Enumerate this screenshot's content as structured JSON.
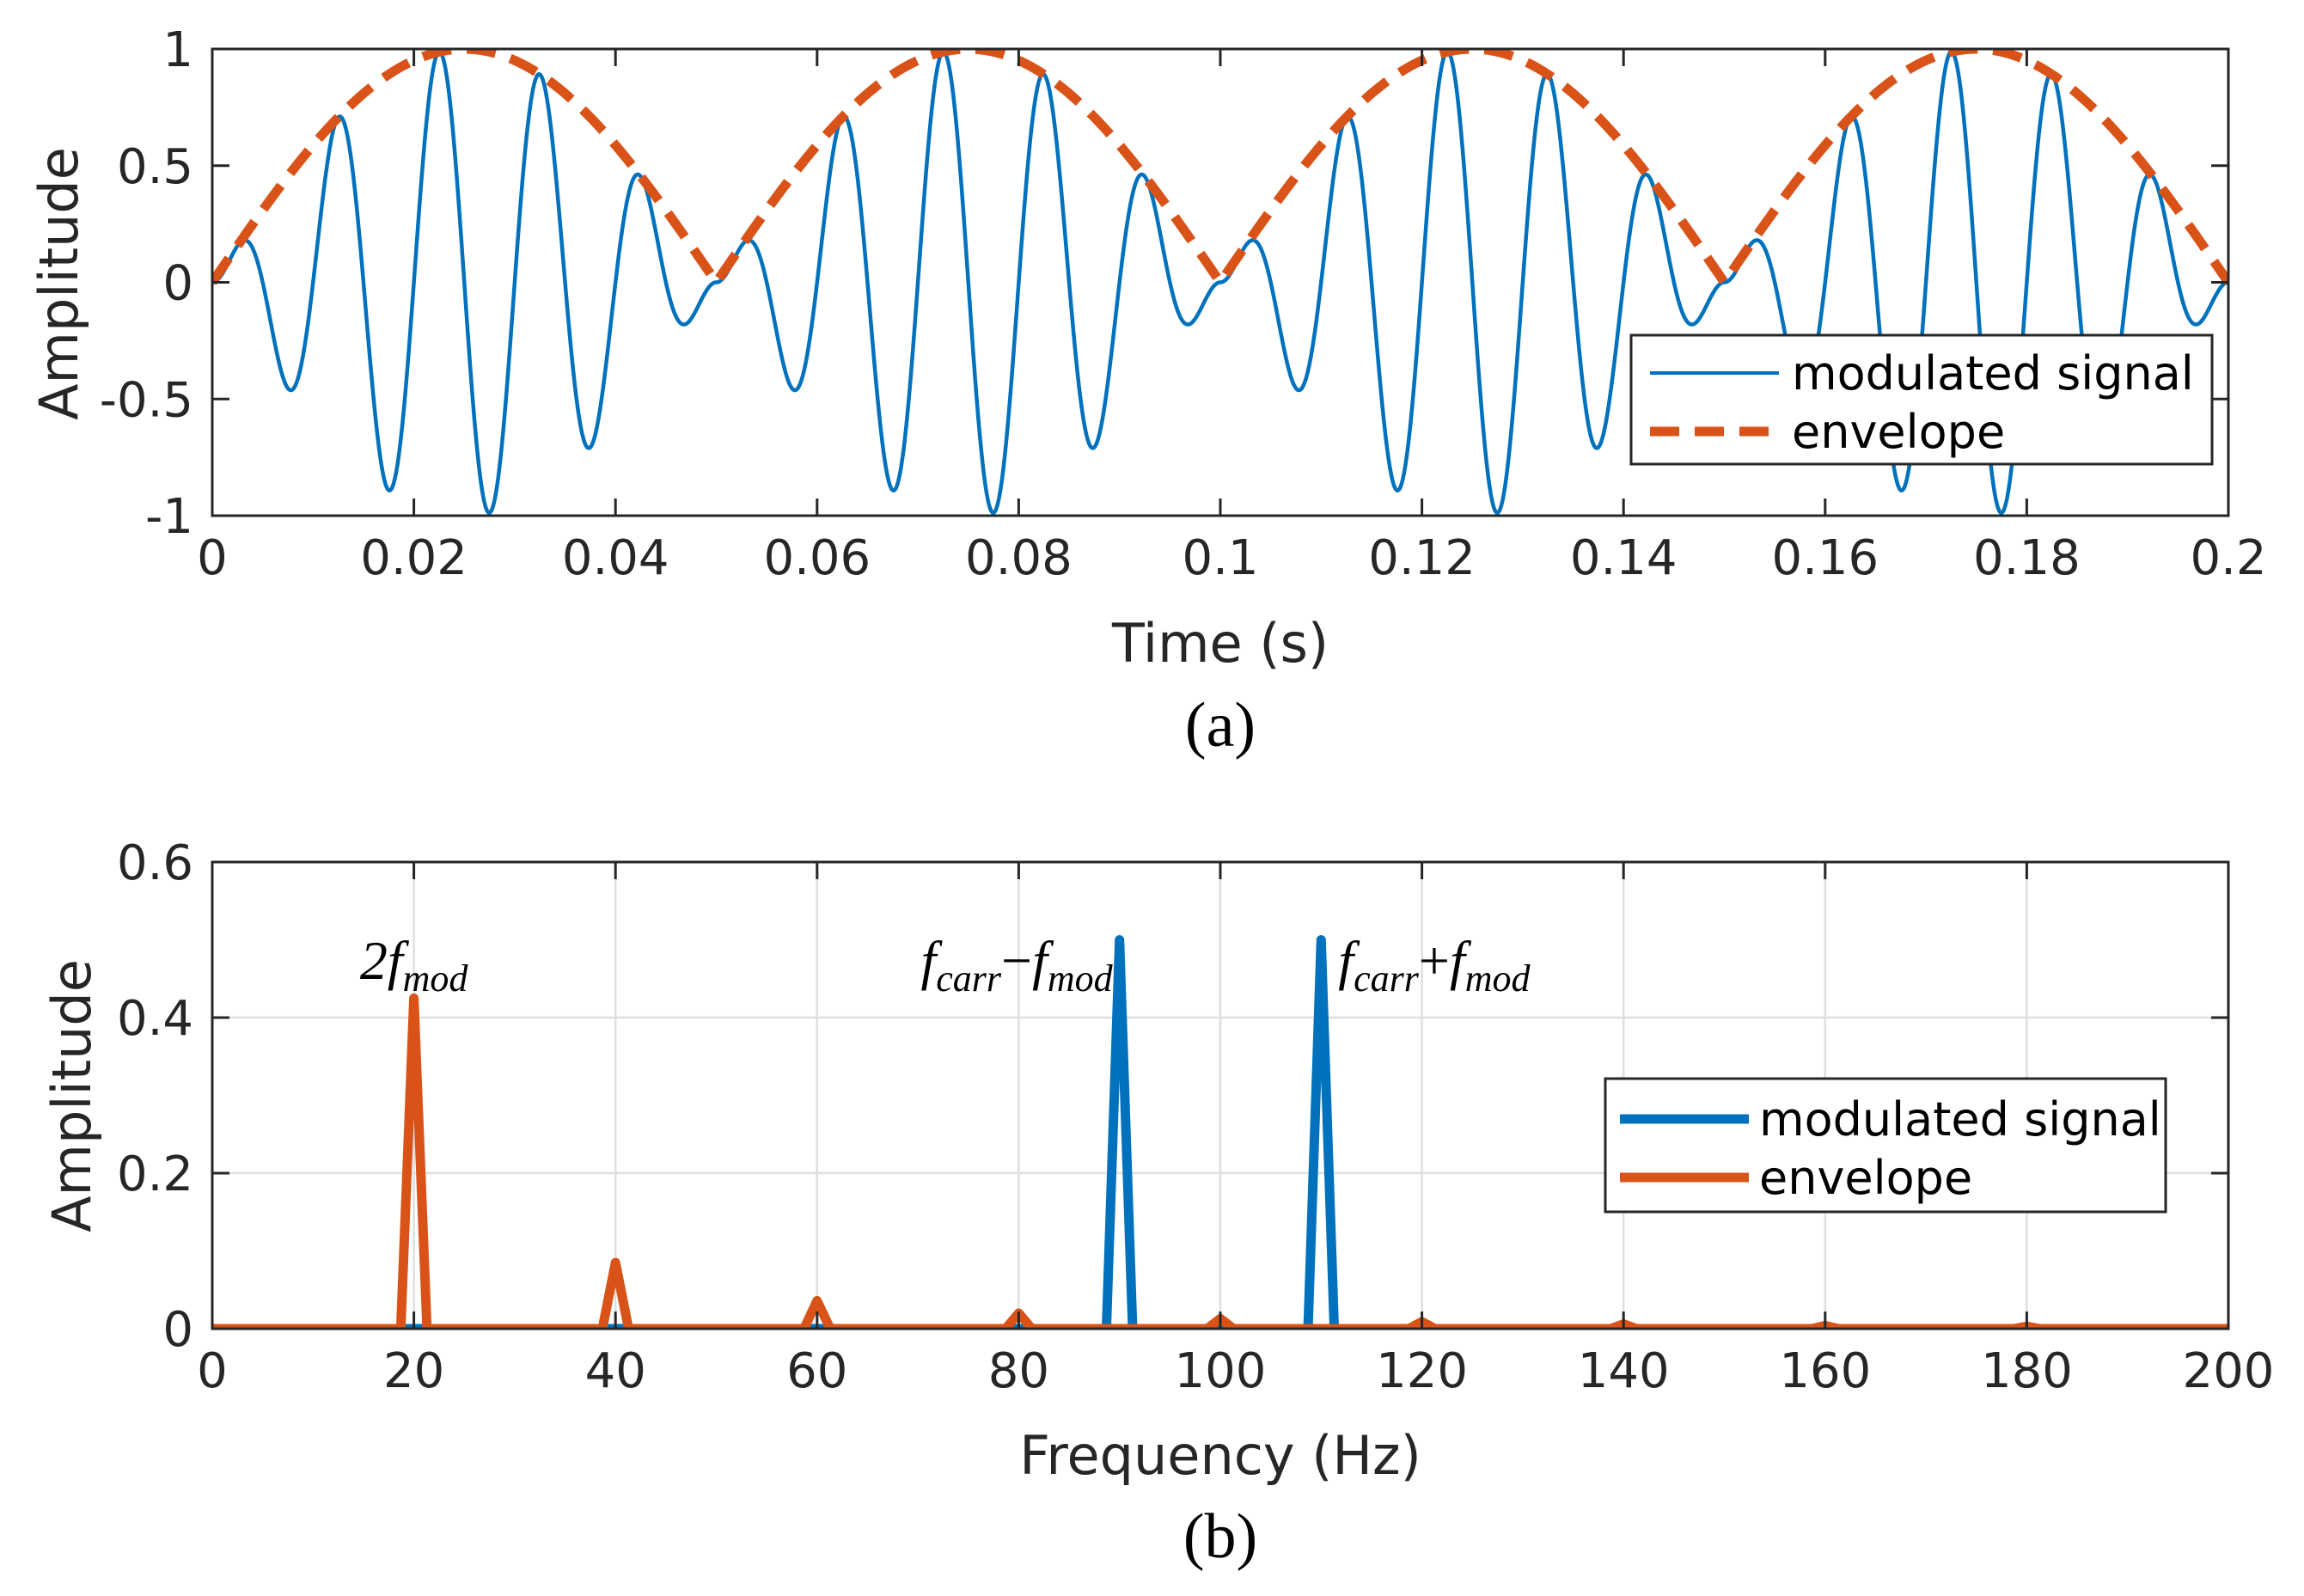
{
  "colors": {
    "signal": "#0072BD",
    "envelope": "#D95319",
    "axis": "#262626",
    "grid": "#DFDFDF"
  },
  "chart_data": [
    {
      "type": "line",
      "panel": "a",
      "caption": "(a)",
      "xlabel": "Time (s)",
      "ylabel": "Amplitude",
      "xlim": [
        0,
        0.2
      ],
      "ylim": [
        -1,
        1
      ],
      "xticks": [
        0,
        0.02,
        0.04,
        0.06,
        0.08,
        0.1,
        0.12,
        0.14,
        0.16,
        0.18,
        0.2
      ],
      "xtick_labels": [
        "0",
        "0.02",
        "0.04",
        "0.06",
        "0.08",
        "0.1",
        "0.12",
        "0.14",
        "0.16",
        "0.18",
        "0.2"
      ],
      "yticks": [
        -1,
        -0.5,
        0,
        0.5,
        1
      ],
      "ytick_labels": [
        "-1",
        "-0.5",
        "0",
        "0.5",
        "1"
      ],
      "grid": false,
      "legend": {
        "location": "bottom-right",
        "entries": [
          "modulated signal",
          "envelope"
        ]
      },
      "series": [
        {
          "name": "modulated signal",
          "style": "solid",
          "formula": "|sin(2π·10·t)| · sin(2π·100·t)",
          "modulation_hz": 10,
          "carrier_hz": 100
        },
        {
          "name": "envelope",
          "style": "dashed",
          "formula": "|sin(2π·10·t)|",
          "modulation_hz": 10
        }
      ]
    },
    {
      "type": "line",
      "panel": "b",
      "caption": "(b)",
      "xlabel": "Frequency (Hz)",
      "ylabel": "Amplitude",
      "xlim": [
        0,
        200
      ],
      "ylim": [
        0,
        0.6
      ],
      "xticks": [
        0,
        20,
        40,
        60,
        80,
        100,
        120,
        140,
        160,
        180,
        200
      ],
      "xtick_labels": [
        "0",
        "20",
        "40",
        "60",
        "80",
        "100",
        "120",
        "140",
        "160",
        "180",
        "200"
      ],
      "yticks": [
        0,
        0.2,
        0.4,
        0.6
      ],
      "ytick_labels": [
        "0",
        "0.2",
        "0.4",
        "0.6"
      ],
      "grid": true,
      "legend": {
        "location": "right",
        "entries": [
          "modulated signal",
          "envelope"
        ]
      },
      "series": [
        {
          "name": "modulated signal",
          "peaks": [
            {
              "x": 90,
              "y": 0.5
            },
            {
              "x": 110,
              "y": 0.5
            }
          ]
        },
        {
          "name": "envelope",
          "peaks": [
            {
              "x": 20,
              "y": 0.425
            },
            {
              "x": 40,
              "y": 0.085
            },
            {
              "x": 60,
              "y": 0.036
            },
            {
              "x": 80,
              "y": 0.02
            },
            {
              "x": 100,
              "y": 0.013
            },
            {
              "x": 120,
              "y": 0.009
            },
            {
              "x": 140,
              "y": 0.006
            },
            {
              "x": 160,
              "y": 0.004
            },
            {
              "x": 180,
              "y": 0.003
            }
          ]
        }
      ],
      "annotations": [
        {
          "text": "2f",
          "sub": "mod",
          "x": 20,
          "y": 0.45
        },
        {
          "text": "f",
          "sub": "carr",
          "op": "−",
          "text2": "f",
          "sub2": "mod",
          "x": 90,
          "y": 0.45
        },
        {
          "text": "f",
          "sub": "carr",
          "op": "+",
          "text2": "f",
          "sub2": "mod",
          "x": 110,
          "y": 0.45
        }
      ]
    }
  ]
}
